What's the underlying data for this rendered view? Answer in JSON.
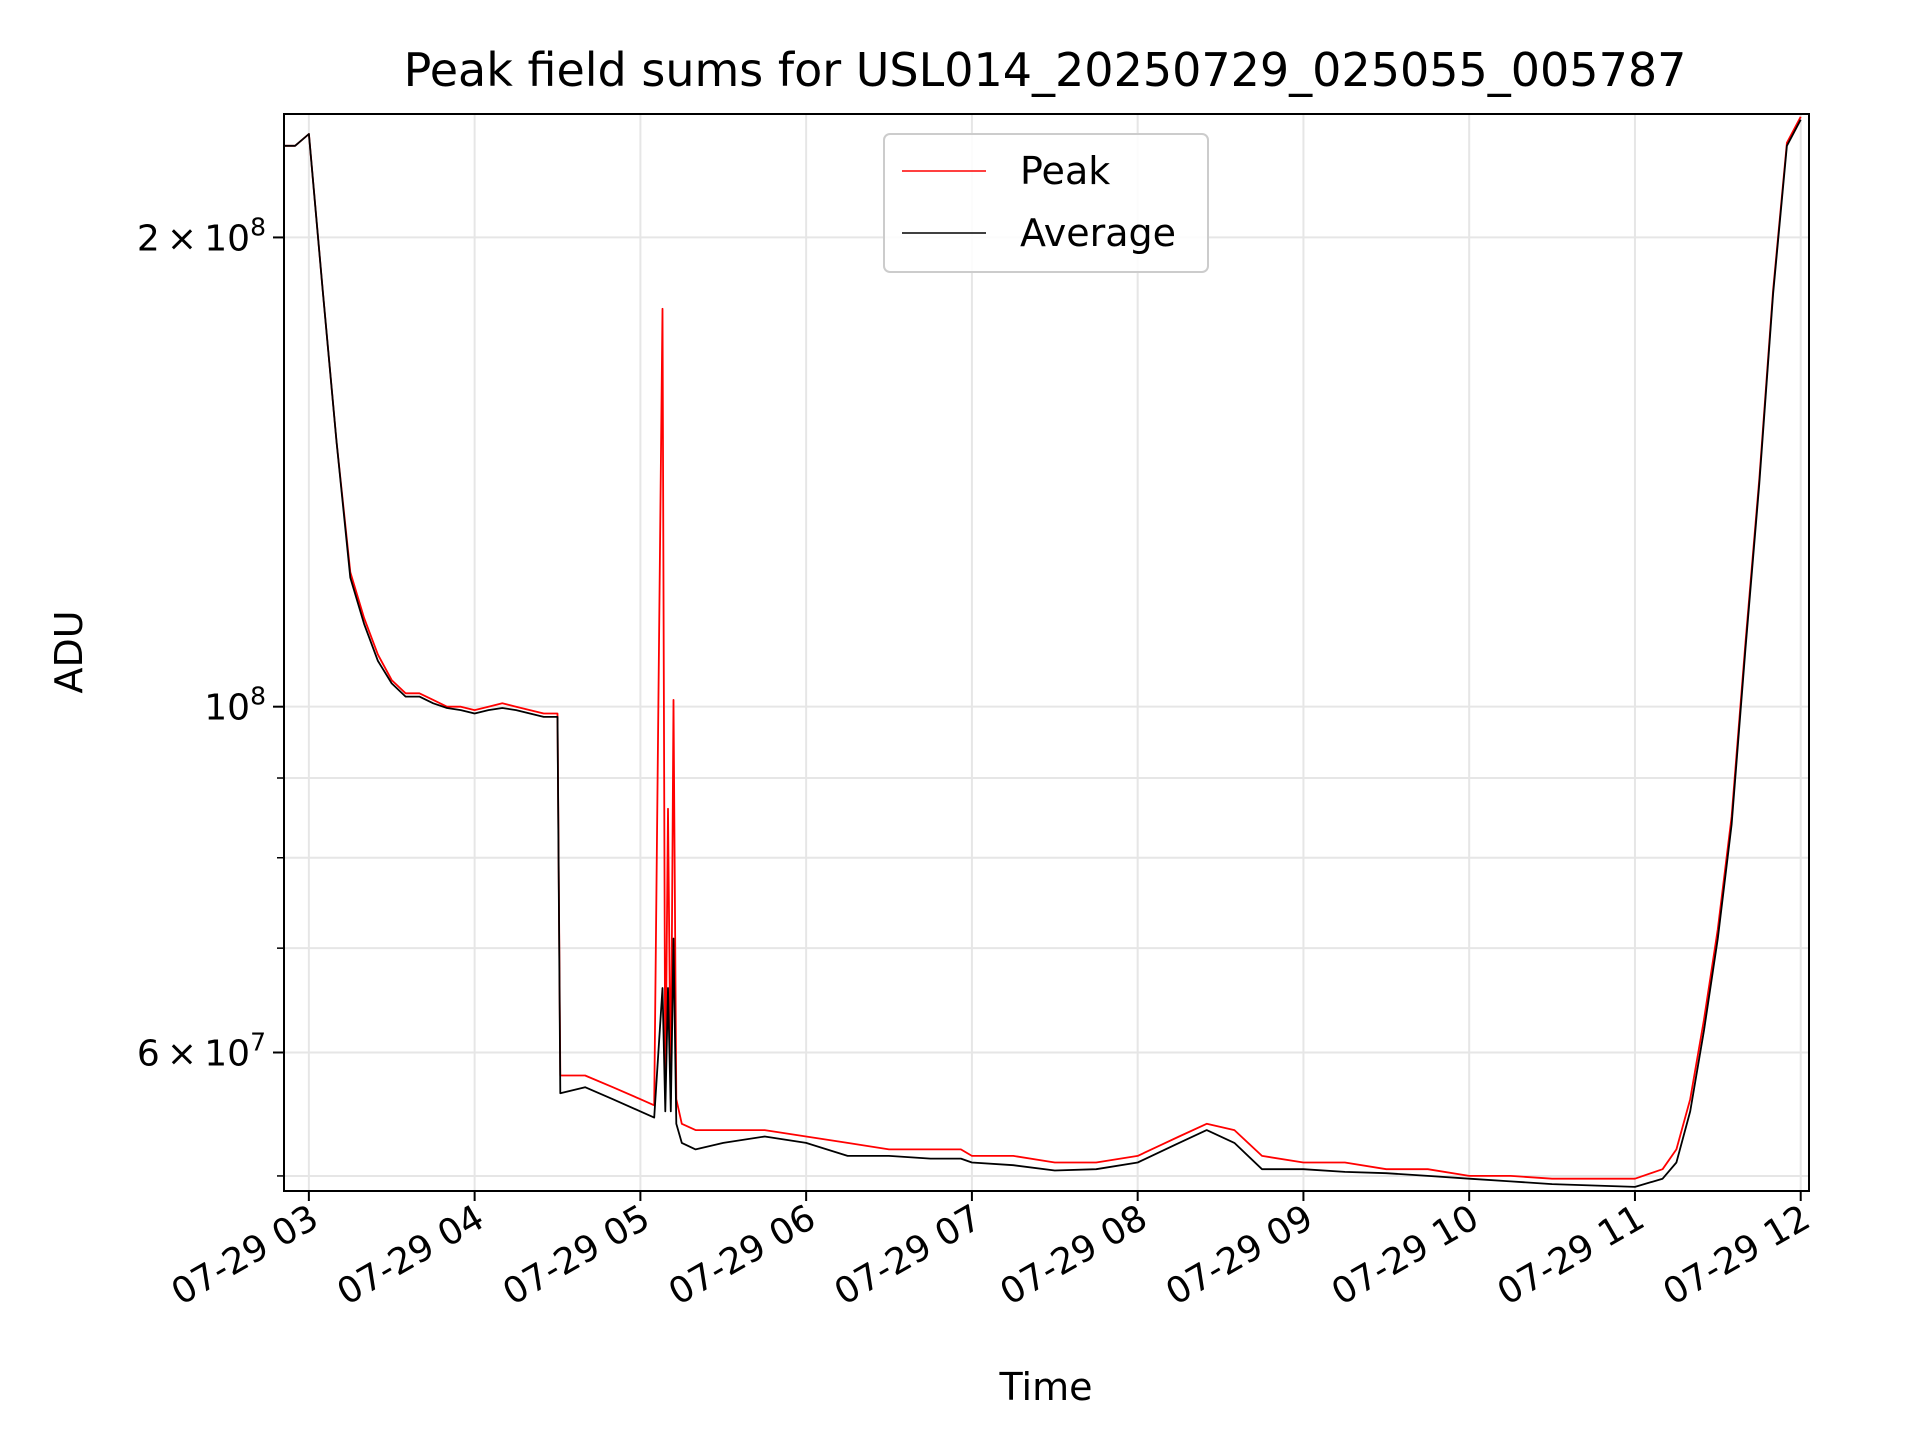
{
  "chart_data": {
    "type": "line",
    "title": "Peak field sums for USL014_20250729_025055_005787",
    "xlabel": "Time",
    "ylabel": "ADU",
    "yscale": "log",
    "xlim": [
      "2025-07-29T02:51",
      "2025-07-29T12:03"
    ],
    "ylim": [
      48900000,
      240000000
    ],
    "grid": true,
    "legend_placement": "upper center",
    "x_ticks": [
      "07-29 03",
      "07-29 04",
      "07-29 05",
      "07-29 06",
      "07-29 07",
      "07-29 08",
      "07-29 09",
      "07-29 10",
      "07-29 11",
      "07-29 12"
    ],
    "y_major_ticks": [
      {
        "value": 60000000,
        "mantissa": "6",
        "exp": "7"
      },
      {
        "value": 100000000,
        "mantissa": "",
        "exp": "8"
      },
      {
        "value": 200000000,
        "mantissa": "2",
        "exp": "8"
      }
    ],
    "y_minor_ticks": [
      50000000,
      70000000,
      80000000,
      90000000
    ],
    "series": [
      {
        "name": "Peak",
        "color": "#ff0000",
        "points": [
          [
            "02:51",
            229000000
          ],
          [
            "02:55",
            229000000
          ],
          [
            "03:00",
            233000000
          ],
          [
            "03:05",
            185000000
          ],
          [
            "03:10",
            148000000
          ],
          [
            "03:15",
            122000000
          ],
          [
            "03:20",
            114000000
          ],
          [
            "03:25",
            108000000
          ],
          [
            "03:30",
            104000000
          ],
          [
            "03:35",
            102000000
          ],
          [
            "03:40",
            102000000
          ],
          [
            "03:45",
            101000000
          ],
          [
            "03:50",
            100000000
          ],
          [
            "03:55",
            100000000
          ],
          [
            "04:00",
            99500000
          ],
          [
            "04:05",
            100000000
          ],
          [
            "04:10",
            100500000
          ],
          [
            "04:15",
            100000000
          ],
          [
            "04:20",
            99500000
          ],
          [
            "04:25",
            99000000
          ],
          [
            "04:30",
            99000000
          ],
          [
            "04:31",
            58000000
          ],
          [
            "04:40",
            58000000
          ],
          [
            "04:50",
            57000000
          ],
          [
            "05:00",
            56000000
          ],
          [
            "05:05",
            55500000
          ],
          [
            "05:08",
            180000000
          ],
          [
            "05:09",
            56000000
          ],
          [
            "05:10",
            86000000
          ],
          [
            "05:11",
            56000000
          ],
          [
            "05:12",
            101000000
          ],
          [
            "05:13",
            56000000
          ],
          [
            "05:15",
            54000000
          ],
          [
            "05:20",
            53500000
          ],
          [
            "05:30",
            53500000
          ],
          [
            "05:45",
            53500000
          ],
          [
            "06:00",
            53000000
          ],
          [
            "06:15",
            52500000
          ],
          [
            "06:30",
            52000000
          ],
          [
            "06:45",
            52000000
          ],
          [
            "06:56",
            52000000
          ],
          [
            "07:00",
            51500000
          ],
          [
            "07:15",
            51500000
          ],
          [
            "07:30",
            51000000
          ],
          [
            "07:45",
            51000000
          ],
          [
            "08:00",
            51500000
          ],
          [
            "08:15",
            53000000
          ],
          [
            "08:25",
            54000000
          ],
          [
            "08:35",
            53500000
          ],
          [
            "08:45",
            51500000
          ],
          [
            "09:00",
            51000000
          ],
          [
            "09:15",
            51000000
          ],
          [
            "09:30",
            50500000
          ],
          [
            "09:45",
            50500000
          ],
          [
            "10:00",
            50000000
          ],
          [
            "10:15",
            50000000
          ],
          [
            "10:30",
            49800000
          ],
          [
            "10:45",
            49800000
          ],
          [
            "11:00",
            49800000
          ],
          [
            "11:10",
            50500000
          ],
          [
            "11:15",
            52000000
          ],
          [
            "11:20",
            56000000
          ],
          [
            "11:25",
            63000000
          ],
          [
            "11:30",
            72000000
          ],
          [
            "11:35",
            85000000
          ],
          [
            "11:40",
            110000000
          ],
          [
            "11:45",
            140000000
          ],
          [
            "11:50",
            185000000
          ],
          [
            "11:55",
            230000000
          ],
          [
            "12:00",
            239000000
          ]
        ]
      },
      {
        "name": "Average",
        "color": "#000000",
        "points": [
          [
            "02:51",
            229000000
          ],
          [
            "02:55",
            229000000
          ],
          [
            "03:00",
            233000000
          ],
          [
            "03:05",
            185000000
          ],
          [
            "03:10",
            148000000
          ],
          [
            "03:15",
            121000000
          ],
          [
            "03:20",
            113000000
          ],
          [
            "03:25",
            107000000
          ],
          [
            "03:30",
            103500000
          ],
          [
            "03:35",
            101500000
          ],
          [
            "03:40",
            101500000
          ],
          [
            "03:45",
            100500000
          ],
          [
            "03:50",
            99800000
          ],
          [
            "03:55",
            99500000
          ],
          [
            "04:00",
            99000000
          ],
          [
            "04:05",
            99500000
          ],
          [
            "04:10",
            99800000
          ],
          [
            "04:15",
            99500000
          ],
          [
            "04:20",
            99000000
          ],
          [
            "04:25",
            98500000
          ],
          [
            "04:30",
            98500000
          ],
          [
            "04:31",
            56500000
          ],
          [
            "04:40",
            57000000
          ],
          [
            "04:50",
            56000000
          ],
          [
            "05:00",
            55000000
          ],
          [
            "05:05",
            54500000
          ],
          [
            "05:08",
            66000000
          ],
          [
            "05:09",
            55000000
          ],
          [
            "05:10",
            66000000
          ],
          [
            "05:11",
            55000000
          ],
          [
            "05:12",
            71000000
          ],
          [
            "05:13",
            54000000
          ],
          [
            "05:15",
            52500000
          ],
          [
            "05:20",
            52000000
          ],
          [
            "05:30",
            52500000
          ],
          [
            "05:45",
            53000000
          ],
          [
            "06:00",
            52500000
          ],
          [
            "06:15",
            51500000
          ],
          [
            "06:30",
            51500000
          ],
          [
            "06:45",
            51300000
          ],
          [
            "06:56",
            51300000
          ],
          [
            "07:00",
            51000000
          ],
          [
            "07:15",
            50800000
          ],
          [
            "07:30",
            50400000
          ],
          [
            "07:45",
            50500000
          ],
          [
            "08:00",
            51000000
          ],
          [
            "08:15",
            52500000
          ],
          [
            "08:25",
            53500000
          ],
          [
            "08:35",
            52500000
          ],
          [
            "08:45",
            50500000
          ],
          [
            "09:00",
            50500000
          ],
          [
            "09:15",
            50300000
          ],
          [
            "09:30",
            50200000
          ],
          [
            "09:45",
            50000000
          ],
          [
            "10:00",
            49800000
          ],
          [
            "10:15",
            49600000
          ],
          [
            "10:30",
            49400000
          ],
          [
            "10:45",
            49300000
          ],
          [
            "11:00",
            49200000
          ],
          [
            "11:10",
            49800000
          ],
          [
            "11:15",
            51000000
          ],
          [
            "11:20",
            55000000
          ],
          [
            "11:25",
            62000000
          ],
          [
            "11:30",
            71000000
          ],
          [
            "11:35",
            84000000
          ],
          [
            "11:40",
            109000000
          ],
          [
            "11:45",
            139000000
          ],
          [
            "11:50",
            184000000
          ],
          [
            "11:55",
            229000000
          ],
          [
            "12:00",
            238000000
          ]
        ]
      }
    ]
  }
}
